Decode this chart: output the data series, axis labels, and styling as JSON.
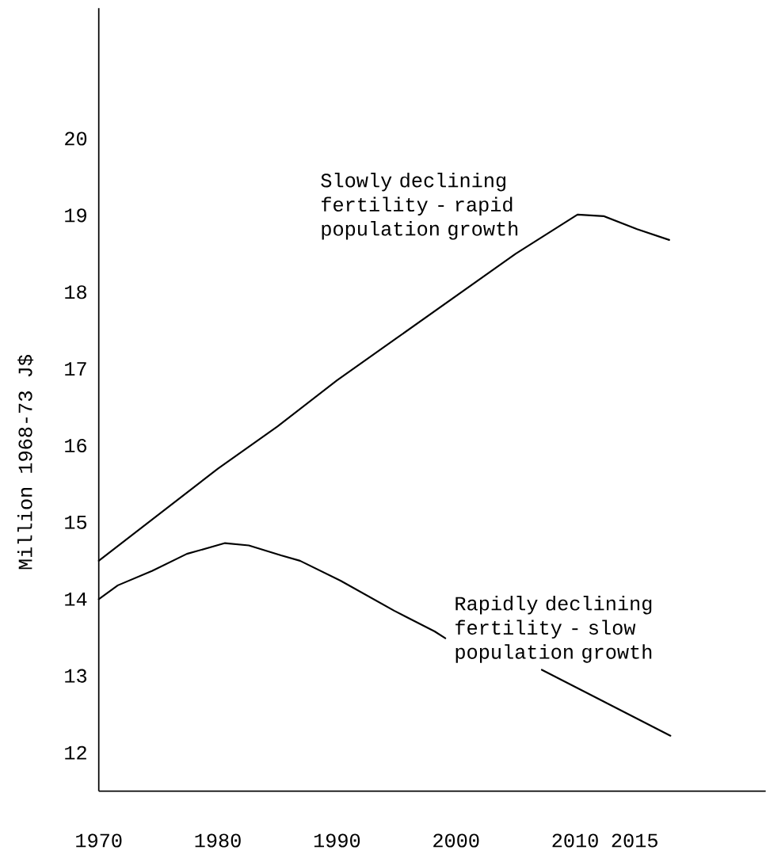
{
  "chart_data": {
    "type": "line",
    "ylabel": "Million 1968-73 J$",
    "xlim": [
      1970,
      2026
    ],
    "ylim": [
      11.5,
      21.7
    ],
    "xticks": [
      1970,
      1980,
      1990,
      2000,
      2010,
      2015
    ],
    "yticks": [
      12,
      13,
      14,
      15,
      16,
      17,
      18,
      19,
      20
    ],
    "grid": false,
    "legend": false,
    "series": [
      {
        "name": "Slowly declining fertility - rapid population growth",
        "color": "#000000",
        "x": [
          1970,
          1975,
          1980,
          1985,
          1990,
          1995,
          2000,
          2005,
          2010.2,
          2012.4,
          2015.2,
          2017.9
        ],
        "values": [
          14.5,
          15.1,
          15.7,
          16.25,
          16.85,
          17.4,
          17.95,
          18.5,
          19.01,
          18.99,
          18.82,
          18.68
        ]
      },
      {
        "name": "Rapidly declining fertility - slow population growth",
        "color": "#000000",
        "x": [
          1970,
          1971.6,
          1974.5,
          1977.4,
          1980.6,
          1982.6,
          1985.3,
          1986.9,
          1990.3,
          1994.8,
          1998.2,
          1999.1,
          2003,
          2007.2,
          2012.6,
          2018.0
        ],
        "values": [
          14.0,
          14.18,
          14.37,
          14.59,
          14.73,
          14.7,
          14.57,
          14.5,
          14.24,
          13.85,
          13.58,
          13.49,
          null,
          13.08,
          12.65,
          12.22
        ]
      }
    ]
  }
}
